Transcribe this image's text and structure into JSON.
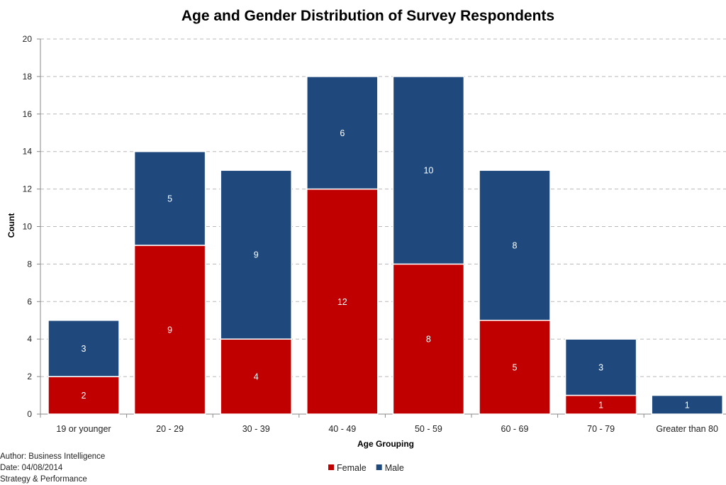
{
  "chart_data": {
    "type": "bar",
    "stacked": true,
    "title": "Age and Gender Distribution of Survey Respondents",
    "xlabel": "Age Grouping",
    "ylabel": "Count",
    "ylim": [
      0,
      20
    ],
    "yticks": [
      0,
      2,
      4,
      6,
      8,
      10,
      12,
      14,
      16,
      18,
      20
    ],
    "grid": true,
    "legend_position": "bottom",
    "categories": [
      "19 or younger",
      "20 - 29",
      "30 - 39",
      "40 - 49",
      "50 - 59",
      "60 - 69",
      "70 - 79",
      "Greater than 80"
    ],
    "series": [
      {
        "name": "Female",
        "color": "#c00000",
        "values": [
          2,
          9,
          4,
          12,
          8,
          5,
          1,
          0
        ]
      },
      {
        "name": "Male",
        "color": "#1f497d",
        "values": [
          3,
          5,
          9,
          6,
          10,
          8,
          3,
          1
        ]
      }
    ]
  },
  "footer": {
    "author": "Author: Business Intelligence",
    "date": "Date: 04/08/2014",
    "department": "Strategy & Performance"
  }
}
